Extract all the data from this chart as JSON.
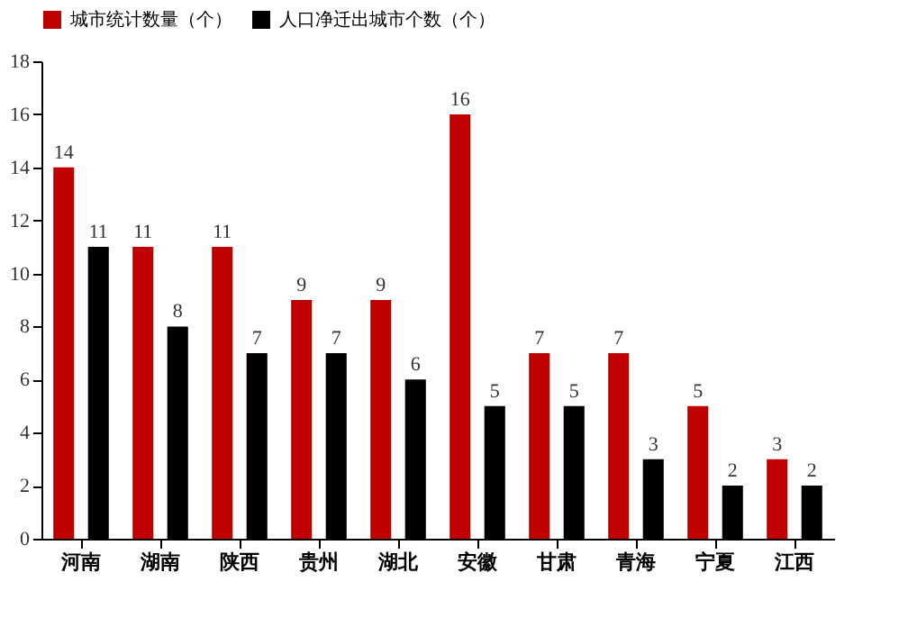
{
  "chart_data": {
    "type": "bar",
    "categories": [
      "河南",
      "湖南",
      "陕西",
      "贵州",
      "湖北",
      "安徽",
      "甘肃",
      "青海",
      "宁夏",
      "江西"
    ],
    "series": [
      {
        "name": "城市统计数量（个）",
        "color": "#c00000",
        "values": [
          14,
          11,
          11,
          9,
          9,
          16,
          7,
          7,
          5,
          3
        ]
      },
      {
        "name": "人口净迁出城市个数（个）",
        "color": "#000000",
        "values": [
          11,
          8,
          7,
          7,
          6,
          5,
          5,
          3,
          2,
          2
        ]
      }
    ],
    "ylim": [
      0,
      18
    ],
    "yticks": [
      0,
      2,
      4,
      6,
      8,
      10,
      12,
      14,
      16,
      18
    ],
    "grid": false,
    "legend": "top",
    "data_labels": true
  }
}
